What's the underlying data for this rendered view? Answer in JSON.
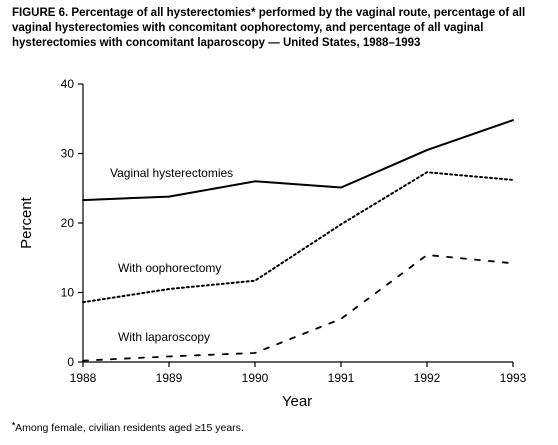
{
  "title": "FIGURE 6. Percentage of all hysterectomies* performed by the vaginal route, percentage of all vaginal hysterectomies with concomitant oophorectomy, and percentage of all vaginal hysterectomies with concomitant laparoscopy — United States, 1988–1993",
  "footnote": {
    "mark": "*",
    "text": "Among female, civilian residents aged ≥15 years."
  },
  "chart_data": {
    "type": "line",
    "xlabel": "Year",
    "ylabel": "Percent",
    "x": [
      1988,
      1989,
      1990,
      1991,
      1992,
      1993
    ],
    "ylim": [
      0,
      40
    ],
    "yticks": [
      0,
      10,
      20,
      30,
      40
    ],
    "grid": false,
    "series": [
      {
        "name": "Vaginal hysterectomies",
        "style": "solid",
        "values": [
          23.3,
          23.8,
          26.0,
          25.1,
          30.5,
          34.8
        ]
      },
      {
        "name": "With oophorectomy",
        "style": "dotted",
        "values": [
          8.6,
          10.5,
          11.7,
          19.8,
          27.3,
          26.2
        ]
      },
      {
        "name": "With laparoscopy",
        "style": "dashed",
        "values": [
          0.2,
          0.8,
          1.3,
          6.2,
          15.4,
          14.2
        ]
      }
    ]
  }
}
